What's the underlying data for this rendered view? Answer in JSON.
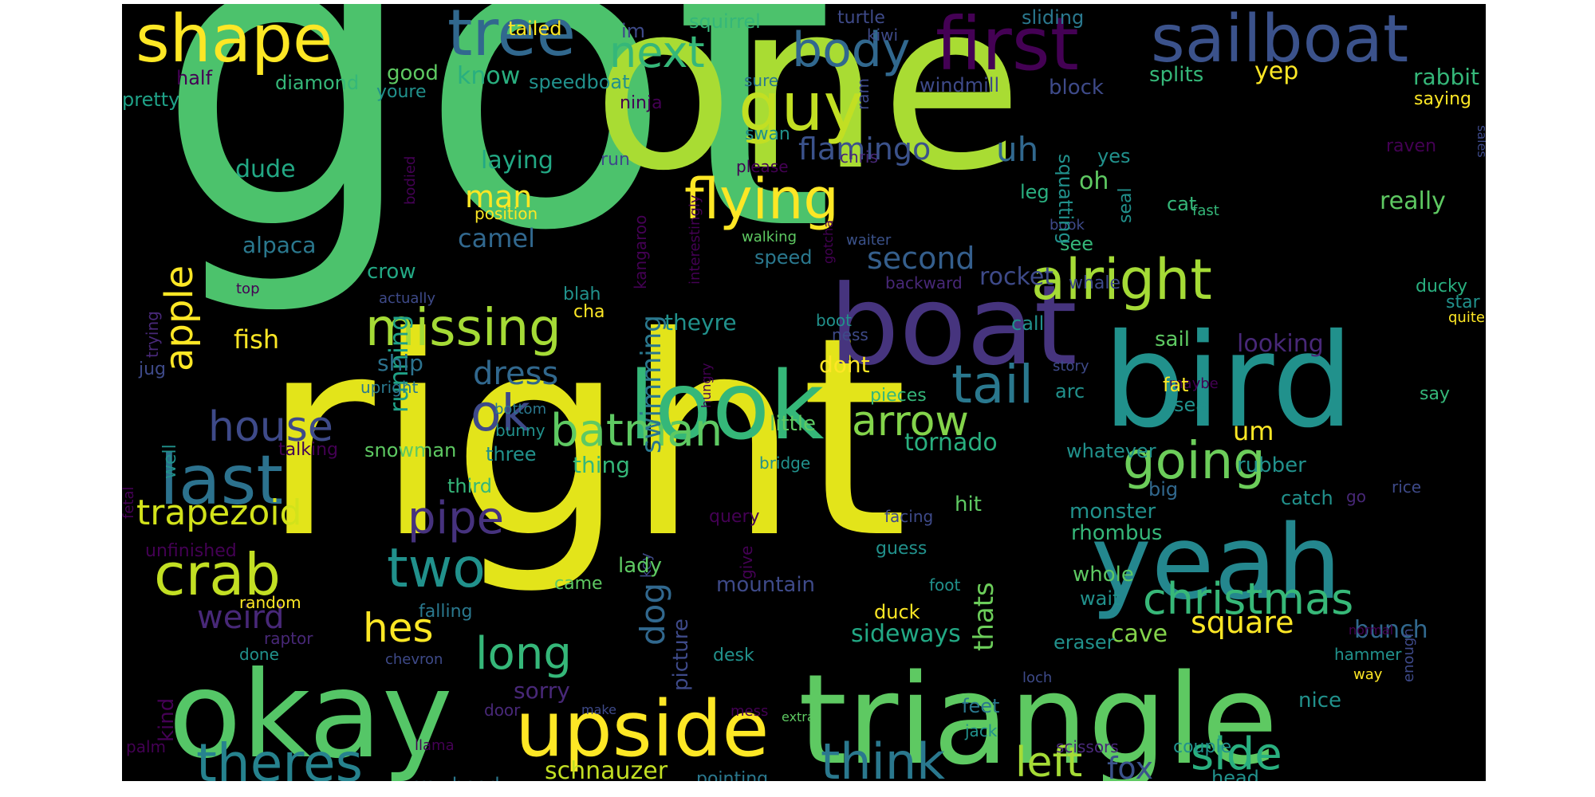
{
  "cloud": {
    "background": "#000000",
    "words": [
      {
        "text": "got",
        "color": "#4cc26c"
      },
      {
        "text": "right",
        "color": "#e3e41a"
      },
      {
        "text": "one",
        "color": "#a9dc33"
      },
      {
        "text": "boat",
        "color": "#46347e"
      },
      {
        "text": "bird",
        "color": "#21918c"
      },
      {
        "text": "okay",
        "color": "#55c667"
      },
      {
        "text": "triangle",
        "color": "#5ec962"
      },
      {
        "text": "yeah",
        "color": "#24878e"
      },
      {
        "text": "look",
        "color": "#35b779"
      },
      {
        "text": "upside",
        "color": "#fde725"
      },
      {
        "text": "first",
        "color": "#440154"
      },
      {
        "text": "sailboat",
        "color": "#3b528b"
      },
      {
        "text": "shape",
        "color": "#fde725"
      },
      {
        "text": "tree",
        "color": "#31688e"
      },
      {
        "text": "body",
        "color": "#31688e"
      },
      {
        "text": "next",
        "color": "#35b779"
      },
      {
        "text": "guy",
        "color": "#c2df23"
      },
      {
        "text": "flying",
        "color": "#fde725"
      },
      {
        "text": "alright",
        "color": "#a5db36"
      },
      {
        "text": "missing",
        "color": "#a5db36"
      },
      {
        "text": "tail",
        "color": "#2a788e"
      },
      {
        "text": "ok",
        "color": "#3e4a89"
      },
      {
        "text": "batman",
        "color": "#5ec962"
      },
      {
        "text": "arrow",
        "color": "#84d44b"
      },
      {
        "text": "going",
        "color": "#6ccd5a"
      },
      {
        "text": "last",
        "color": "#2c728e"
      },
      {
        "text": "house",
        "color": "#3e4a89"
      },
      {
        "text": "crab",
        "color": "#c2df23"
      },
      {
        "text": "two",
        "color": "#21918c"
      },
      {
        "text": "pipe",
        "color": "#46327e"
      },
      {
        "text": "christmas",
        "color": "#37b878"
      },
      {
        "text": "long",
        "color": "#35b779"
      },
      {
        "text": "hes",
        "color": "#fde725"
      },
      {
        "text": "theres",
        "color": "#26828e"
      },
      {
        "text": "think",
        "color": "#2a788e"
      },
      {
        "text": "left",
        "color": "#a5db36"
      },
      {
        "text": "side",
        "color": "#29af7f"
      },
      {
        "text": "apple",
        "color": "#fde725"
      },
      {
        "text": "flamingo",
        "color": "#3b528b"
      },
      {
        "text": "uh",
        "color": "#31688e"
      },
      {
        "text": "swimming",
        "color": "#2a788e"
      },
      {
        "text": "dog",
        "color": "#31688e"
      },
      {
        "text": "running",
        "color": "#1fa187"
      },
      {
        "text": "man",
        "color": "#fde725"
      },
      {
        "text": "trapezoid",
        "color": "#d2e21b"
      },
      {
        "text": "weird",
        "color": "#482878"
      },
      {
        "text": "square",
        "color": "#fde725"
      },
      {
        "text": "fox",
        "color": "#3b528b"
      },
      {
        "text": "dress",
        "color": "#31688e"
      },
      {
        "text": "second",
        "color": "#355f8d"
      },
      {
        "text": "um",
        "color": "#fde725"
      },
      {
        "text": "tornado",
        "color": "#29af7f"
      },
      {
        "text": "schnauzer",
        "color": "#c2df23"
      },
      {
        "text": "thats",
        "color": "#6ccd5a"
      },
      {
        "text": "sideways",
        "color": "#22a884"
      },
      {
        "text": "bunch",
        "color": "#31688e"
      },
      {
        "text": "fish",
        "color": "#fde725"
      },
      {
        "text": "rocket",
        "color": "#3e4a89"
      },
      {
        "text": "ship",
        "color": "#2c728e"
      },
      {
        "text": "camel",
        "color": "#31688e"
      },
      {
        "text": "dude",
        "color": "#22a884"
      },
      {
        "text": "alpaca",
        "color": "#2a788e"
      },
      {
        "text": "crow",
        "color": "#22a884"
      },
      {
        "text": "cave",
        "color": "#84d44b"
      },
      {
        "text": "laying",
        "color": "#22a884"
      },
      {
        "text": "theyre",
        "color": "#21918c"
      },
      {
        "text": "dont",
        "color": "#fde725"
      },
      {
        "text": "really",
        "color": "#5ec962"
      },
      {
        "text": "yep",
        "color": "#fde725"
      },
      {
        "text": "rabbit",
        "color": "#35b779"
      },
      {
        "text": "splits",
        "color": "#35b779"
      },
      {
        "text": "block",
        "color": "#3e4a89"
      },
      {
        "text": "know",
        "color": "#29af7f"
      },
      {
        "text": "good",
        "color": "#5ec962"
      },
      {
        "text": "speedboat",
        "color": "#21918c"
      },
      {
        "text": "diamond",
        "color": "#35b779"
      },
      {
        "text": "half",
        "color": "#440154"
      },
      {
        "text": "pretty",
        "color": "#1fa187"
      },
      {
        "text": "youre",
        "color": "#21918c"
      },
      {
        "text": "tailed",
        "color": "#fde725"
      },
      {
        "text": "im",
        "color": "#3e4a89"
      },
      {
        "text": "squirrel",
        "color": "#35b779"
      },
      {
        "text": "sure",
        "color": "#2a788e"
      },
      {
        "text": "windmill",
        "color": "#3e4a89"
      },
      {
        "text": "turtle",
        "color": "#3e4a89"
      },
      {
        "text": "sliding",
        "color": "#2a788e"
      },
      {
        "text": "kiwi",
        "color": "#3e4a89"
      },
      {
        "text": "ram",
        "color": "#3e4a89"
      },
      {
        "text": "ninja",
        "color": "#440154"
      },
      {
        "text": "saying",
        "color": "#fde725"
      },
      {
        "text": "sales",
        "color": "#3e4a89"
      },
      {
        "text": "raven",
        "color": "#440154"
      },
      {
        "text": "swan",
        "color": "#21918c"
      },
      {
        "text": "run",
        "color": "#3e4a89"
      },
      {
        "text": "please",
        "color": "#440154"
      },
      {
        "text": "chris",
        "color": "#482878"
      },
      {
        "text": "waiter",
        "color": "#3b528b"
      },
      {
        "text": "walking",
        "color": "#5ec962"
      },
      {
        "text": "speed",
        "color": "#2a788e"
      },
      {
        "text": "leg",
        "color": "#29af7f"
      },
      {
        "text": "yes",
        "color": "#21918c"
      },
      {
        "text": "cat",
        "color": "#35b779"
      },
      {
        "text": "fast",
        "color": "#35b779"
      },
      {
        "text": "seal",
        "color": "#21918c"
      },
      {
        "text": "book",
        "color": "#3e4a89"
      },
      {
        "text": "see",
        "color": "#35b779"
      },
      {
        "text": "squatting",
        "color": "#21918c"
      },
      {
        "text": "oh",
        "color": "#5ec962"
      },
      {
        "text": "bodied",
        "color": "#440154"
      },
      {
        "text": "position",
        "color": "#fde725"
      },
      {
        "text": "kangaroo",
        "color": "#440154"
      },
      {
        "text": "interestingly",
        "color": "#440154"
      },
      {
        "text": "gotcha",
        "color": "#440154"
      },
      {
        "text": "backward",
        "color": "#482878"
      },
      {
        "text": "whale",
        "color": "#3e4a89"
      },
      {
        "text": "ducky",
        "color": "#29af7f"
      },
      {
        "text": "star",
        "color": "#21918c"
      },
      {
        "text": "quite",
        "color": "#fde725"
      },
      {
        "text": "looking",
        "color": "#482878"
      },
      {
        "text": "call",
        "color": "#21918c"
      },
      {
        "text": "sail",
        "color": "#5ec962"
      },
      {
        "text": "boot",
        "color": "#21918c"
      },
      {
        "text": "ness",
        "color": "#3e4a89"
      },
      {
        "text": "blah",
        "color": "#21918c"
      },
      {
        "text": "cha",
        "color": "#fde725"
      },
      {
        "text": "actually",
        "color": "#3e4a89"
      },
      {
        "text": "top",
        "color": "#440154"
      },
      {
        "text": "trying",
        "color": "#482878"
      },
      {
        "text": "jug",
        "color": "#3e4a89"
      },
      {
        "text": "upright",
        "color": "#2a788e"
      },
      {
        "text": "hungry",
        "color": "#440154"
      },
      {
        "text": "story",
        "color": "#3e4a89"
      },
      {
        "text": "maybe",
        "color": "#440154"
      },
      {
        "text": "arc",
        "color": "#21918c"
      },
      {
        "text": "fat",
        "color": "#fde725"
      },
      {
        "text": "pieces",
        "color": "#35b779"
      },
      {
        "text": "sea",
        "color": "#21918c"
      },
      {
        "text": "say",
        "color": "#35b779"
      },
      {
        "text": "bottom",
        "color": "#2a788e"
      },
      {
        "text": "bunny",
        "color": "#21918c"
      },
      {
        "text": "little",
        "color": "#5ec962"
      },
      {
        "text": "well",
        "color": "#21918c"
      },
      {
        "text": "talking",
        "color": "#440154"
      },
      {
        "text": "snowman",
        "color": "#5ec962"
      },
      {
        "text": "three",
        "color": "#21918c"
      },
      {
        "text": "bridge",
        "color": "#21918c"
      },
      {
        "text": "thing",
        "color": "#35b779"
      },
      {
        "text": "whatever",
        "color": "#21918c"
      },
      {
        "text": "rubber",
        "color": "#21918c"
      },
      {
        "text": "rice",
        "color": "#3e4a89"
      },
      {
        "text": "fetal",
        "color": "#440154"
      },
      {
        "text": "third",
        "color": "#35b779"
      },
      {
        "text": "big",
        "color": "#31688e"
      },
      {
        "text": "catch",
        "color": "#21918c"
      },
      {
        "text": "go",
        "color": "#482878"
      },
      {
        "text": "query",
        "color": "#440154"
      },
      {
        "text": "facing",
        "color": "#3e4a89"
      },
      {
        "text": "hit",
        "color": "#5ec962"
      },
      {
        "text": "monster",
        "color": "#21918c"
      },
      {
        "text": "rhombus",
        "color": "#35b779"
      },
      {
        "text": "unfinished",
        "color": "#440154"
      },
      {
        "text": "key",
        "color": "#3e4a89"
      },
      {
        "text": "give",
        "color": "#440154"
      },
      {
        "text": "guess",
        "color": "#21918c"
      },
      {
        "text": "lady",
        "color": "#5ec962"
      },
      {
        "text": "whole",
        "color": "#5ec962"
      },
      {
        "text": "came",
        "color": "#5ec962"
      },
      {
        "text": "mountain",
        "color": "#3e4a89"
      },
      {
        "text": "foot",
        "color": "#21918c"
      },
      {
        "text": "wait",
        "color": "#21918c"
      },
      {
        "text": "random",
        "color": "#fde725"
      },
      {
        "text": "falling",
        "color": "#2a788e"
      },
      {
        "text": "duck",
        "color": "#fde725"
      },
      {
        "text": "picture",
        "color": "#3e4a89"
      },
      {
        "text": "raptor",
        "color": "#482878"
      },
      {
        "text": "eraser",
        "color": "#21918c"
      },
      {
        "text": "normal",
        "color": "#440154"
      },
      {
        "text": "done",
        "color": "#21918c"
      },
      {
        "text": "chevron",
        "color": "#3e4a89"
      },
      {
        "text": "desk",
        "color": "#21918c"
      },
      {
        "text": "hammer",
        "color": "#21918c"
      },
      {
        "text": "way",
        "color": "#fde725"
      },
      {
        "text": "enough",
        "color": "#3e4a89"
      },
      {
        "text": "loch",
        "color": "#3e4a89"
      },
      {
        "text": "kind",
        "color": "#440154"
      },
      {
        "text": "sorry",
        "color": "#482878"
      },
      {
        "text": "feet",
        "color": "#2a788e"
      },
      {
        "text": "nice",
        "color": "#21918c"
      },
      {
        "text": "door",
        "color": "#482878"
      },
      {
        "text": "make",
        "color": "#3e4a89"
      },
      {
        "text": "mess",
        "color": "#440154"
      },
      {
        "text": "extra",
        "color": "#5ec962"
      },
      {
        "text": "jack",
        "color": "#21918c"
      },
      {
        "text": "palm",
        "color": "#440154"
      },
      {
        "text": "llama",
        "color": "#440154"
      },
      {
        "text": "scissors",
        "color": "#482878"
      },
      {
        "text": "couple",
        "color": "#21918c"
      },
      {
        "text": "arrowhead",
        "color": "#2a788e"
      },
      {
        "text": "pointing",
        "color": "#2a788e"
      },
      {
        "text": "head",
        "color": "#21918c"
      }
    ]
  }
}
